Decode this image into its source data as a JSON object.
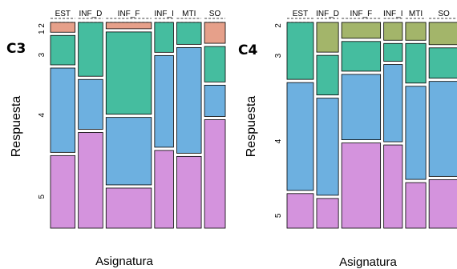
{
  "chart_data": [
    {
      "type": "mosaic",
      "panel_label": "C3",
      "xlabel": "Asignatura",
      "ylabel": "Respuesta",
      "categories": [
        "EST",
        "INF_D",
        "INF_F",
        "INF_I",
        "MTI",
        "SO"
      ],
      "responses": [
        "2",
        "1",
        "3",
        "4",
        "5"
      ],
      "response_ticks": [
        "2",
        "1",
        "3",
        "4",
        "5"
      ],
      "column_widths": [
        0.13,
        0.13,
        0.24,
        0.1,
        0.13,
        0.11
      ],
      "proportions": {
        "EST": [
          0.0,
          0.05,
          0.15,
          0.43,
          0.37
        ],
        "INF_D": [
          0.0,
          0.0,
          0.27,
          0.25,
          0.48
        ],
        "INF_F": [
          0.0,
          0.03,
          0.39,
          0.32,
          0.19
        ],
        "INF_I": [
          0.0,
          0.0,
          0.15,
          0.46,
          0.39
        ],
        "MTI": [
          0.0,
          0.0,
          0.11,
          0.53,
          0.36
        ],
        "SO": [
          0.0,
          0.1,
          0.17,
          0.15,
          0.52
        ]
      },
      "colors": {
        "2": "#a3b56a",
        "1": "#e6a08a",
        "3": "#45bd9f",
        "4": "#6db0e0",
        "5": "#d493dd"
      }
    },
    {
      "type": "mosaic",
      "panel_label": "C4",
      "xlabel": "Asignatura",
      "ylabel": "Respuesta",
      "categories": [
        "EST",
        "INF_D",
        "INF_F",
        "INF_I",
        "MTI",
        "SO"
      ],
      "responses": [
        "2",
        "3",
        "4",
        "5"
      ],
      "response_ticks": [
        "2",
        "3",
        "4",
        "5"
      ],
      "column_widths": [
        0.17,
        0.14,
        0.25,
        0.12,
        0.13,
        0.19
      ],
      "proportions": {
        "EST": [
          0.0,
          0.28,
          0.53,
          0.17
        ],
        "INF_D": [
          0.15,
          0.2,
          0.49,
          0.15
        ],
        "INF_F": [
          0.08,
          0.15,
          0.33,
          0.43
        ],
        "INF_I": [
          0.09,
          0.09,
          0.39,
          0.42
        ],
        "MTI": [
          0.09,
          0.2,
          0.47,
          0.23
        ],
        "SO": [
          0.11,
          0.15,
          0.47,
          0.24
        ]
      },
      "colors": {
        "2": "#a3b56a",
        "3": "#45bd9f",
        "4": "#6db0e0",
        "5": "#d493dd"
      }
    }
  ]
}
